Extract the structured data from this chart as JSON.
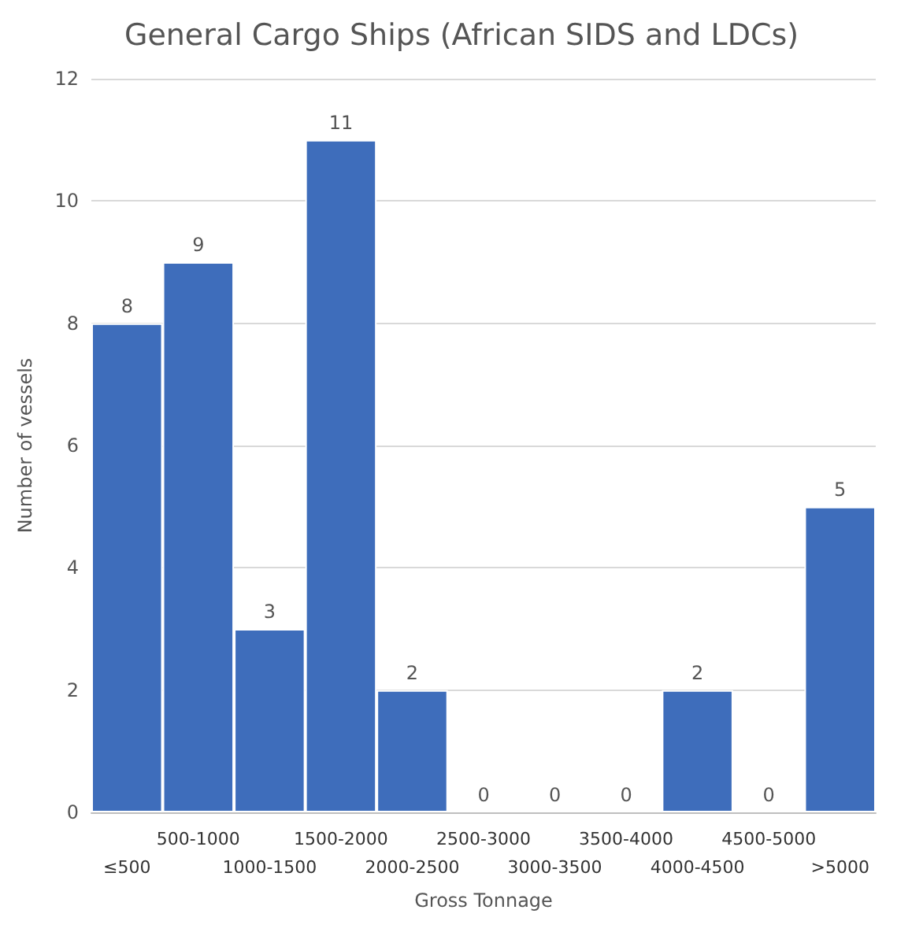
{
  "chart_data": {
    "type": "bar",
    "title": "General Cargo Ships (African SIDS and LDCs)",
    "xlabel": "Gross Tonnage",
    "ylabel": "Number of vessels",
    "categories": [
      "≤500",
      "500-1000",
      "1000-1500",
      "1500-2000",
      "2000-2500",
      "2500-3000",
      "3000-3500",
      "3500-4000",
      "4000-4500",
      "4500-5000",
      ">5000"
    ],
    "values": [
      8,
      9,
      3,
      11,
      2,
      0,
      0,
      0,
      2,
      0,
      5
    ],
    "color": "#3e6dbb",
    "ylim": [
      0,
      12
    ],
    "yticks": [
      0,
      2,
      4,
      6,
      8,
      10,
      12
    ],
    "grid": "y",
    "data_labels": true
  }
}
